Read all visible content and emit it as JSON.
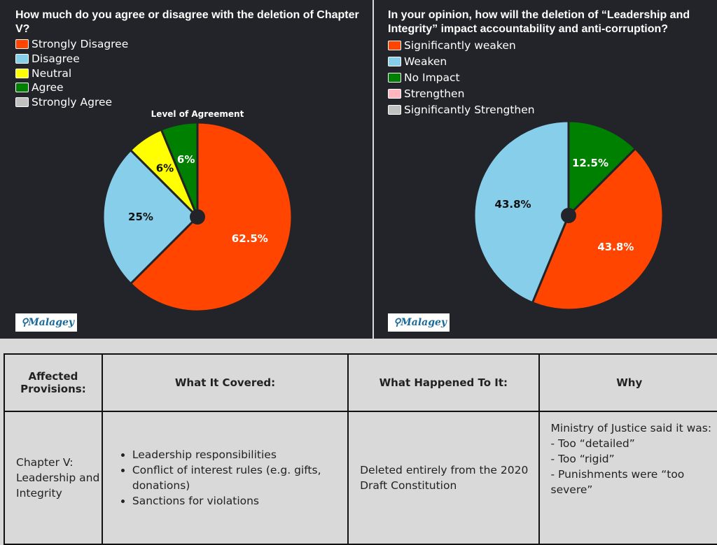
{
  "chart_data": [
    {
      "type": "pie",
      "question": "How much do you agree or disagree with the deletion of Chapter V?",
      "title": "Level of Agreement",
      "categories": [
        "Strongly Disagree",
        "Disagree",
        "Neutral",
        "Agree",
        "Strongly Agree"
      ],
      "values": [
        62.5,
        25,
        6.25,
        6.25,
        0
      ],
      "labels": [
        "62.5%",
        "25%",
        "6%",
        "6%",
        ""
      ],
      "colors": [
        "#ff4500",
        "#87ceeb",
        "#ffff00",
        "#008000",
        "#c0c0c0"
      ],
      "label_colors": [
        "#ffffff",
        "#111111",
        "#111111",
        "#ffffff",
        "#111111"
      ]
    },
    {
      "type": "pie",
      "question": "In your opinion, how will the deletion of “Leadership and Integrity” impact accountability and anti-corruption?",
      "title": "",
      "categories": [
        "Significantly weaken",
        "Weaken",
        "No Impact",
        "Strengthen",
        "Significantly Strengthen"
      ],
      "values": [
        43.8,
        43.8,
        12.5,
        0,
        0
      ],
      "labels": [
        "43.8%",
        "43.8%",
        "12.5%",
        "",
        ""
      ],
      "colors": [
        "#ff4500",
        "#87ceeb",
        "#008000",
        "#ffb6c1",
        "#c0c0c0"
      ],
      "label_colors": [
        "#ffffff",
        "#111111",
        "#ffffff",
        "#111111",
        "#111111"
      ]
    }
  ],
  "logo_text": "Malagey",
  "table": {
    "headers": [
      "Affected Provisions:",
      "What It Covered:",
      "What Happened To It:",
      "Why"
    ],
    "row": {
      "provision": "Chapter V: Leadership and Integrity",
      "covered": [
        "Leadership responsibilities",
        "Conflict of interest rules (e.g. gifts, donations)",
        "Sanctions for violations"
      ],
      "happened": "Deleted entirely from the 2020 Draft Constitution",
      "why_intro": "Ministry of Justice said it was:",
      "why": [
        "- Too “detailed”",
        "- Too “rigid”",
        "- Punishments were “too severe”"
      ]
    }
  }
}
